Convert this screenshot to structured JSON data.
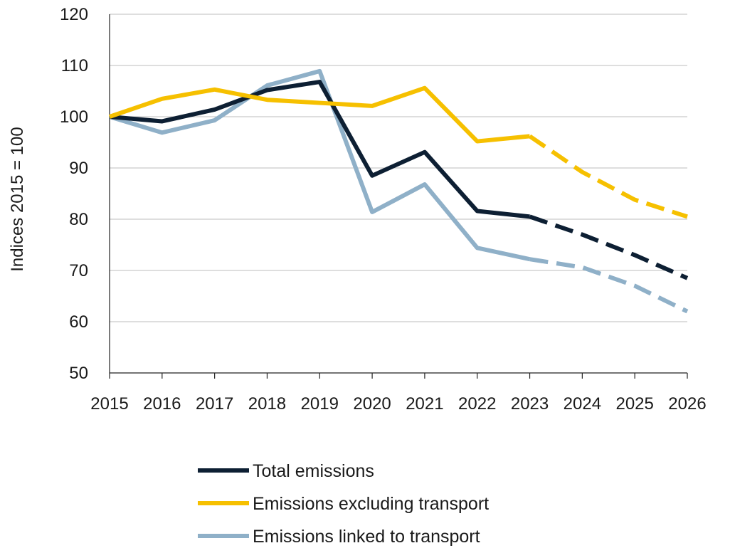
{
  "chart_data": {
    "type": "line",
    "ylabel": "Indices 2015 = 100",
    "xlabel": "",
    "ylim": [
      50,
      120
    ],
    "yticks": [
      50,
      60,
      70,
      80,
      90,
      100,
      110,
      120
    ],
    "x": [
      "2015",
      "2016",
      "2017",
      "2018",
      "2019",
      "2020",
      "2021",
      "2022",
      "2023",
      "2024",
      "2025",
      "2026"
    ],
    "grid": true,
    "legend_position": "bottom",
    "forecast_from": "2023",
    "series": [
      {
        "name": "Total emissions",
        "color": "#0d1f33",
        "values": [
          100,
          99.1,
          101.4,
          105.2,
          106.8,
          88.5,
          93.1,
          81.6,
          80.5,
          77.0,
          73.0,
          68.5
        ]
      },
      {
        "name": "Emissions excluding transport",
        "color": "#f6c000",
        "values": [
          100,
          103.5,
          105.3,
          103.3,
          102.7,
          102.1,
          105.6,
          95.2,
          96.2,
          89.2,
          83.8,
          80.5
        ]
      },
      {
        "name": "Emissions linked to transport",
        "color": "#8fb0c8",
        "values": [
          100,
          96.9,
          99.3,
          106.1,
          108.9,
          81.4,
          86.8,
          74.4,
          72.2,
          70.6,
          67.0,
          62.0
        ]
      }
    ]
  }
}
